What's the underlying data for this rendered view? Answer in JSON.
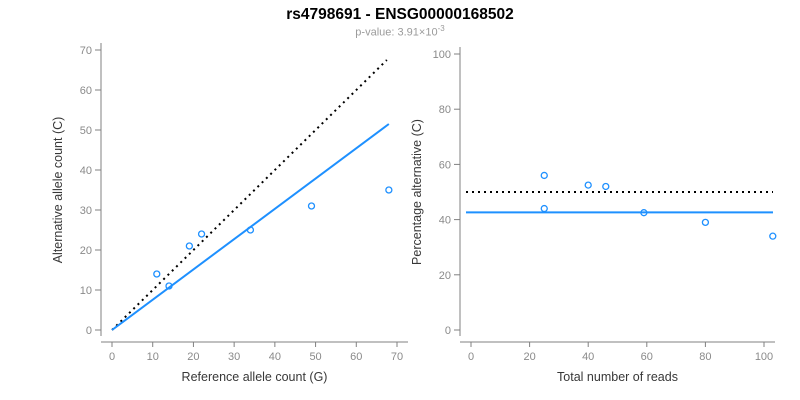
{
  "header": {
    "title": "rs4798691 - ENSG00000168502",
    "subtitle_prefix": "p-value: 3.91×10",
    "subtitle_exponent": "-3"
  },
  "colors": {
    "accent_blue": "#1E90FF",
    "dotted_line_black": "#000000",
    "axis_gray": "#808080",
    "tick_label_gray": "#8a8a8a",
    "subtitle_gray": "#9b9b9b"
  },
  "chart_data": [
    {
      "type": "scatter",
      "panel": "left",
      "xlabel": "Reference allele count (G)",
      "ylabel": "Alternative allele count (C)",
      "xlim": [
        0,
        70
      ],
      "ylim": [
        0,
        70
      ],
      "xticks": [
        0,
        10,
        20,
        30,
        40,
        50,
        60,
        70
      ],
      "yticks": [
        0,
        10,
        20,
        30,
        40,
        50,
        60,
        70
      ],
      "grid": false,
      "legend": null,
      "marker": "open-circle",
      "point_color": "#1E90FF",
      "points": [
        [
          11,
          14
        ],
        [
          14,
          11
        ],
        [
          19,
          21
        ],
        [
          22,
          24
        ],
        [
          34,
          25
        ],
        [
          49,
          31
        ],
        [
          68,
          35
        ]
      ],
      "lines": [
        {
          "name": "identity-line",
          "style": "dotted",
          "color": "#000000",
          "from": [
            0,
            0
          ],
          "to": [
            67.5,
            67.5
          ]
        },
        {
          "name": "fit-line",
          "style": "solid",
          "color": "#1E90FF",
          "from": [
            0,
            0
          ],
          "to": [
            68,
            51.5
          ]
        }
      ]
    },
    {
      "type": "scatter",
      "panel": "right",
      "xlabel": "Total number of reads",
      "ylabel": "Percentage alternative (C)",
      "xlim": [
        0,
        100
      ],
      "ylim": [
        0,
        100
      ],
      "xticks": [
        0,
        20,
        40,
        60,
        80,
        100
      ],
      "yticks": [
        0,
        20,
        40,
        60,
        80,
        100
      ],
      "grid": false,
      "legend": null,
      "marker": "open-circle",
      "point_color": "#1E90FF",
      "points": [
        [
          25,
          56
        ],
        [
          25,
          44
        ],
        [
          40,
          52.5
        ],
        [
          46,
          52
        ],
        [
          59,
          42.5
        ],
        [
          80,
          39
        ],
        [
          103,
          34
        ]
      ],
      "lines": [
        {
          "name": "expected-50pct-line",
          "style": "dotted",
          "color": "#000000",
          "y": 50
        },
        {
          "name": "observed-pct-line",
          "style": "solid",
          "color": "#1E90FF",
          "y": 42.6
        }
      ]
    }
  ]
}
